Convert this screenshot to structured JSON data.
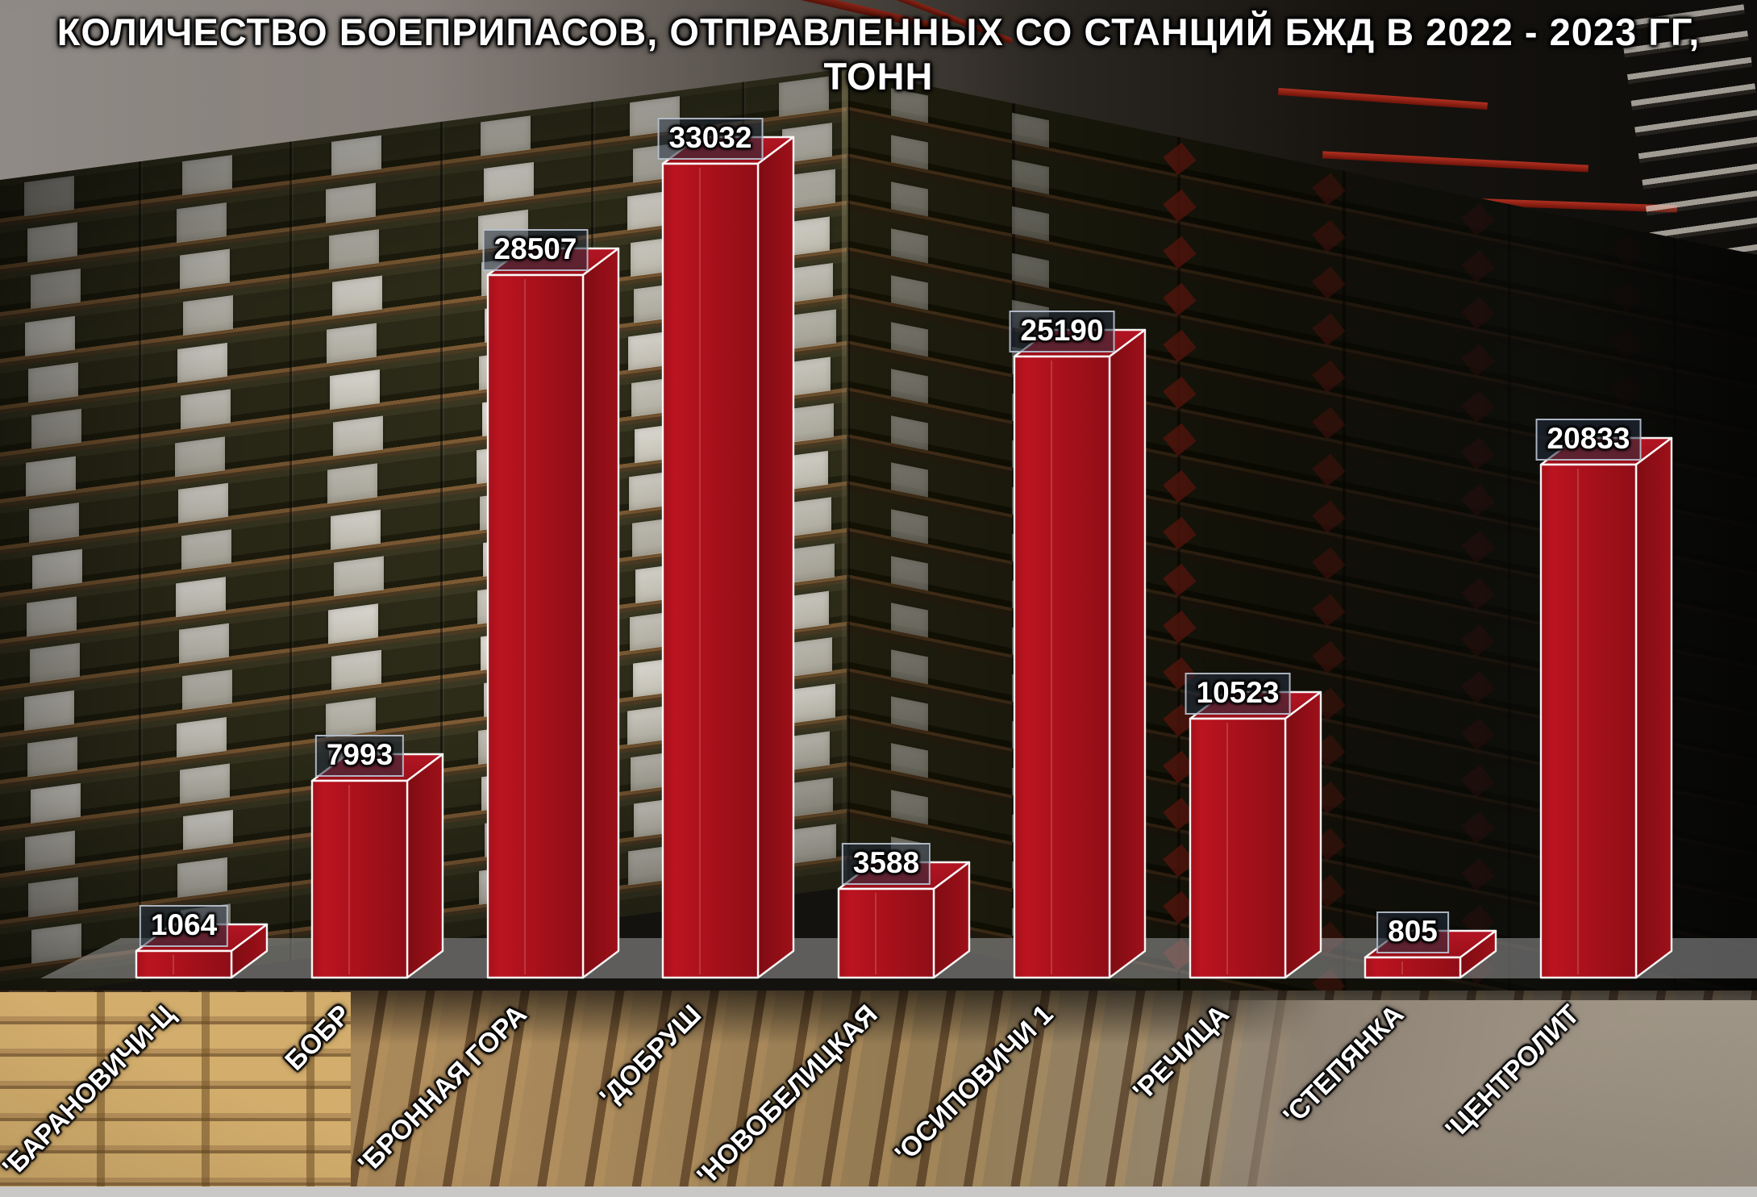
{
  "title": "КОЛИЧЕСТВО БОЕПРИПАСОВ, ОТПРАВЛЕННЫХ СО СТАНЦИЙ БЖД В 2022 - 2023 ГГ, ТОНН",
  "chart_data": {
    "type": "bar",
    "subtype": "3d-column",
    "title": "КОЛИЧЕСТВО БОЕПРИПАСОВ, ОТПРАВЛЕННЫХ СО СТАНЦИЙ БЖД В 2022 - 2023 ГГ, ТОНН",
    "categories": [
      "'БАРАНОВИЧИ-Ц",
      "БОБР",
      "'БРОННАЯ ГОРА",
      "'ДОБРУШ",
      "'НОВОБЕЛИЦКАЯ",
      "'ОСИПОВИЧИ 1",
      "'РЕЧИЦА",
      "'СТЕПЯНКА",
      "'ЦЕНТРОЛИТ"
    ],
    "values": [
      1064,
      7993,
      28507,
      33032,
      3588,
      25190,
      10523,
      805,
      20833
    ],
    "value_labels": [
      "1064",
      "7993",
      "28507",
      "33032",
      "3588",
      "25190",
      "10523",
      "805",
      "20833"
    ],
    "xlabel": "",
    "ylabel": "",
    "unit": "тонн",
    "ylim": [
      0,
      34000
    ],
    "legend": "none",
    "grid": false,
    "bar_color_front": "#b11219",
    "bar_color_top": "#a31019",
    "bar_color_side": "#8d0d15",
    "bar_edge_color": "#ffffff",
    "value_label_box_bg": "rgba(36,48,64,0.55)",
    "value_label_box_border": "rgba(195,205,218,0.85)",
    "value_label_text_color": "#ffffff",
    "category_text_color": "#ffffff",
    "background_description": "warehouse interior photo: stacked olive-green ammunition crates with white labels and red hazard diamonds, wooden pallets below"
  }
}
